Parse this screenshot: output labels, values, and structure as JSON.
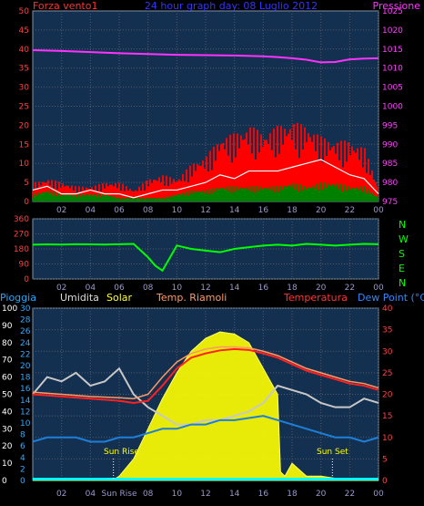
{
  "header": {
    "left": "Forza vento1",
    "center": "24 hour graph day: 08 Luglio 2012",
    "right": "Pressione"
  },
  "legend": {
    "pioggia": "Pioggia",
    "umidita": "Umidita",
    "solar": "Solar",
    "feels": "Temp. Riamoli",
    "temp": "Temperatura",
    "dew": "Dew Point (°C)"
  },
  "annotations": {
    "sunrise": "Sun Rise",
    "sunset": "Sun Set",
    "sunrise_tick": "Sun Rise"
  },
  "compass": [
    "N",
    "W",
    "S",
    "E",
    "N"
  ],
  "colors": {
    "plot_bg": "#143050",
    "grid": "#505a6a",
    "wind": "#ff0000",
    "gust": "#ffffff",
    "calm": "#008000",
    "pressure": "#ff33ff",
    "direction": "#00ff00",
    "temp": "#ff2020",
    "feels": "#ff9966",
    "humidity": "#c8c8c8",
    "dew": "#1e7fd8",
    "solar": "#ffff00",
    "rain": "#00ffff"
  },
  "chart_data": [
    {
      "type": "line",
      "xlabel": "",
      "ylabel_left": "",
      "ylabel_right": "",
      "x_ticks": [
        "02",
        "04",
        "06",
        "08",
        "10",
        "12",
        "14",
        "16",
        "18",
        "20",
        "22",
        "00"
      ],
      "y_ticks_left": [
        0,
        5,
        10,
        15,
        20,
        25,
        30,
        35,
        40,
        45,
        50
      ],
      "y_ticks_right": [
        975,
        980,
        985,
        990,
        995,
        1000,
        1005,
        1010,
        1015,
        1020,
        1025
      ],
      "ylim_left": [
        0,
        50
      ],
      "ylim_right": [
        975,
        1025
      ],
      "grid": true,
      "series": [
        {
          "role": "pressure",
          "axis": "right",
          "x": [
            0,
            2,
            4,
            6,
            8,
            10,
            12,
            14,
            16,
            17,
            18,
            19,
            20,
            21,
            22,
            23,
            24
          ],
          "y": [
            1014.7,
            1014.5,
            1014.2,
            1013.9,
            1013.7,
            1013.5,
            1013.4,
            1013.3,
            1013.1,
            1012.9,
            1012.6,
            1012.2,
            1011.5,
            1011.6,
            1012.3,
            1012.5,
            1012.6
          ]
        },
        {
          "role": "wind",
          "axis": "left",
          "x": [
            0,
            1,
            2,
            3,
            4,
            5,
            6,
            7,
            8,
            9,
            10,
            11,
            12,
            13,
            14,
            15,
            16,
            17,
            18,
            19,
            20,
            21,
            22,
            23,
            24
          ],
          "y": [
            5,
            6,
            5,
            4,
            4,
            5,
            5,
            3,
            6,
            7,
            6,
            10,
            12,
            17,
            18,
            20,
            18,
            20,
            21,
            20,
            17,
            16,
            16,
            14,
            3
          ]
        },
        {
          "role": "gust",
          "axis": "left",
          "x": [
            0,
            1,
            2,
            3,
            4,
            5,
            6,
            7,
            8,
            9,
            10,
            11,
            12,
            13,
            14,
            15,
            16,
            17,
            18,
            19,
            20,
            21,
            22,
            23,
            24
          ],
          "y": [
            3,
            4,
            2,
            2,
            3,
            2,
            2,
            1,
            2,
            3,
            3,
            4,
            5,
            7,
            6,
            8,
            8,
            8,
            9,
            10,
            11,
            9,
            7,
            6,
            2
          ]
        },
        {
          "role": "calm",
          "axis": "left",
          "x": [
            0,
            1,
            2,
            3,
            4,
            5,
            6,
            7,
            8,
            9,
            10,
            11,
            12,
            13,
            14,
            15,
            16,
            17,
            18,
            19,
            20,
            21,
            22,
            23,
            24
          ],
          "y": [
            2,
            3,
            2,
            2,
            2,
            2,
            1,
            1,
            1,
            1,
            2,
            3,
            3,
            4,
            4,
            4,
            4,
            4,
            5,
            4,
            5,
            5,
            4,
            4,
            1
          ]
        }
      ]
    },
    {
      "type": "line",
      "xlabel": "",
      "ylabel": "",
      "y_ticks": [
        0,
        90,
        180,
        270,
        360
      ],
      "ylim": [
        0,
        360
      ],
      "x_ticks": [
        "02",
        "04",
        "06",
        "08",
        "10",
        "12",
        "14",
        "16",
        "18",
        "20",
        "22",
        "00"
      ],
      "series": [
        {
          "role": "direction",
          "x": [
            0,
            1,
            2,
            3,
            4,
            5,
            6,
            7,
            8,
            8.5,
            9,
            10,
            11,
            12,
            13,
            14,
            15,
            16,
            17,
            18,
            19,
            20,
            21,
            22,
            23,
            24
          ],
          "y": [
            205,
            207,
            206,
            208,
            207,
            206,
            208,
            210,
            130,
            80,
            50,
            200,
            180,
            170,
            160,
            180,
            190,
            200,
            205,
            200,
            210,
            205,
            200,
            205,
            210,
            208
          ]
        }
      ]
    },
    {
      "type": "line",
      "xlabel": "",
      "ylabel": "",
      "x_ticks": [
        "02",
        "04",
        "Sun Rise",
        "08",
        "10",
        "12",
        "14",
        "16",
        "18",
        "20",
        "22",
        "00"
      ],
      "y_ticks_left_rain": [
        0,
        10,
        20,
        30,
        40,
        50,
        60,
        70,
        80,
        90,
        100
      ],
      "y_ticks_left_humidity": [
        0,
        2,
        4,
        6,
        8,
        10,
        12,
        14,
        16,
        18,
        20,
        22,
        24,
        26,
        28,
        30
      ],
      "y_ticks_right": [
        0,
        5,
        10,
        15,
        20,
        25,
        30,
        35,
        40
      ],
      "ylim_right": [
        0,
        40
      ],
      "ylim_rain": [
        0,
        100
      ],
      "grid": true,
      "series": [
        {
          "role": "temp",
          "axis": "right",
          "x": [
            0,
            2,
            4,
            6,
            7,
            8,
            9,
            10,
            11,
            12,
            13,
            14,
            15,
            16,
            17,
            18,
            19,
            20,
            21,
            22,
            23,
            24
          ],
          "y": [
            20,
            19.5,
            19,
            18.5,
            18,
            18.5,
            22,
            26,
            28.5,
            29.5,
            30.2,
            30.5,
            30.3,
            29.5,
            28.5,
            27,
            25.5,
            24.5,
            23.5,
            22.5,
            22,
            21
          ]
        },
        {
          "role": "feels",
          "axis": "right",
          "x": [
            0,
            2,
            4,
            6,
            7,
            8,
            9,
            10,
            11,
            12,
            13,
            14,
            15,
            16,
            17,
            18,
            19,
            20,
            21,
            22,
            23,
            24
          ],
          "y": [
            20.5,
            20,
            19.5,
            19.2,
            19,
            20,
            24,
            27.5,
            29.5,
            30.5,
            31,
            31,
            30.8,
            30,
            29,
            27.5,
            26,
            25,
            24,
            23,
            22.5,
            21.5
          ]
        },
        {
          "role": "humidity",
          "axis": "right",
          "x": [
            0,
            1,
            2,
            3,
            4,
            5,
            6,
            7,
            8,
            9,
            10,
            11,
            12,
            13,
            14,
            15,
            16,
            17,
            18,
            19,
            20,
            21,
            22,
            23,
            24
          ],
          "y": [
            20,
            24,
            23,
            25,
            22,
            23,
            26,
            20,
            17,
            15,
            13,
            13,
            14,
            14,
            15,
            16,
            18,
            22,
            21,
            20,
            18,
            17,
            17,
            19,
            18
          ]
        },
        {
          "role": "dew",
          "axis": "right",
          "x": [
            0,
            1,
            2,
            3,
            4,
            5,
            6,
            7,
            8,
            9,
            10,
            11,
            12,
            13,
            14,
            15,
            16,
            17,
            18,
            19,
            20,
            21,
            22,
            23,
            24
          ],
          "y": [
            9,
            10,
            10,
            10,
            9,
            9,
            10,
            10,
            11,
            12,
            12,
            13,
            13,
            14,
            14,
            14.5,
            15,
            14,
            13,
            12,
            11,
            10,
            10,
            9,
            10
          ]
        },
        {
          "role": "solar",
          "axis": "right",
          "x": [
            0,
            5.5,
            6,
            7,
            8,
            9,
            10,
            11,
            12,
            13,
            14,
            15,
            16,
            17,
            17.2,
            17.5,
            18,
            19,
            20,
            21,
            22,
            23,
            24
          ],
          "y": [
            0,
            0,
            1,
            5,
            12,
            19,
            25,
            30,
            33,
            34.5,
            34,
            32,
            26,
            20,
            2,
            1,
            4,
            1,
            1,
            0.5,
            0,
            0,
            0
          ]
        },
        {
          "role": "rain",
          "axis": "rain",
          "x": [
            0,
            24
          ],
          "y": [
            0,
            0
          ]
        }
      ]
    }
  ]
}
